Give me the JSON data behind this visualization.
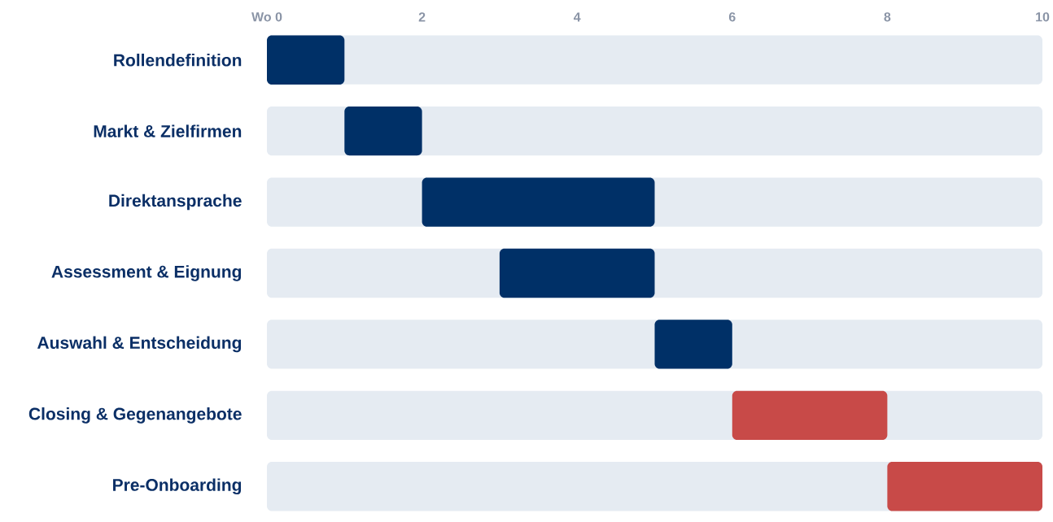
{
  "chart_data": {
    "type": "bar",
    "orientation": "horizontal",
    "grid": false,
    "categories": [
      "Rollendefinition",
      "Markt & Zielfirmen",
      "Direktansprache",
      "Assessment & Eignung",
      "Auswahl & Entscheidung",
      "Closing & Gegenangebote",
      "Pre-Onboarding"
    ],
    "xlim": [
      0,
      10
    ],
    "xticks": [
      {
        "value": 0,
        "label": "Wo 0"
      },
      2,
      4,
      6,
      8,
      10
    ],
    "colors": [
      "#003067",
      "#003067",
      "#003067",
      "#003067",
      "#003067",
      "#c84a48",
      "#c84a48"
    ],
    "base": [
      0,
      1,
      2,
      3,
      5,
      6,
      8
    ],
    "values": [
      1,
      1,
      3,
      2,
      1,
      2,
      2
    ]
  }
}
